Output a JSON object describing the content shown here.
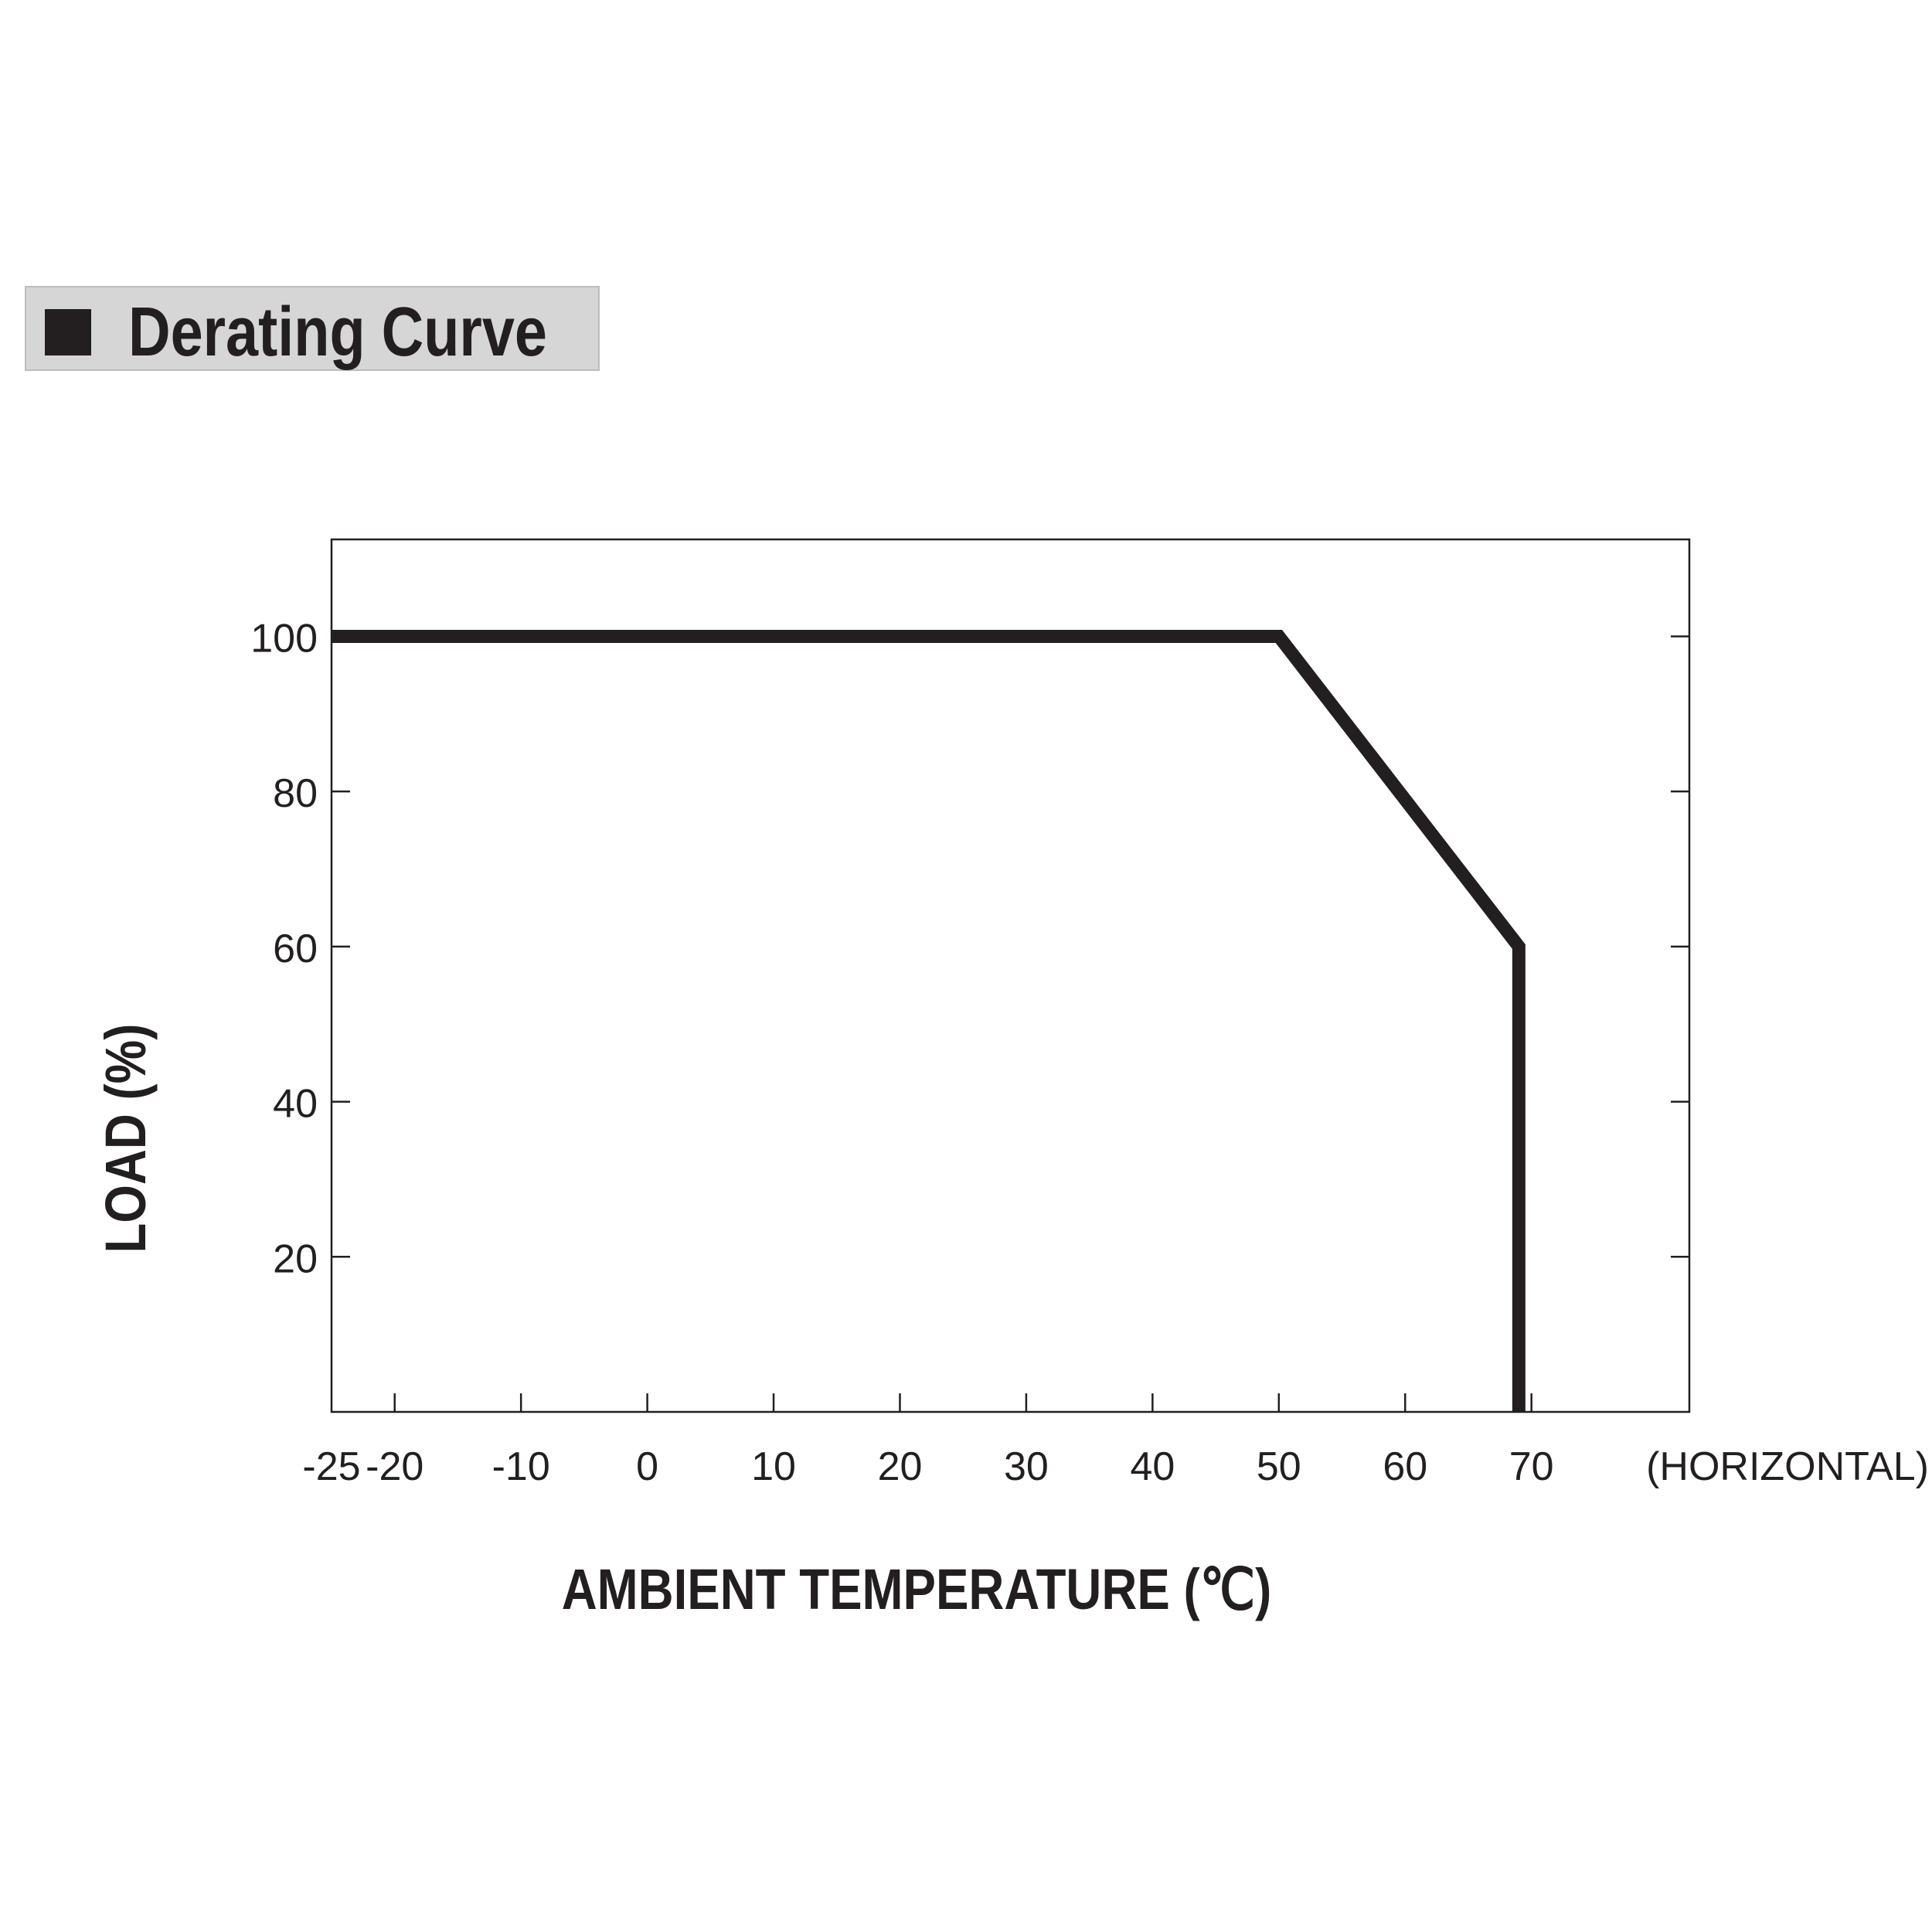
{
  "header": {
    "title": "Derating Curve"
  },
  "chart_data": {
    "type": "line",
    "title": "Derating Curve",
    "xlabel": "AMBIENT TEMPERATURE (℃)",
    "ylabel": "LOAD (%)",
    "x_annotation": "(HORIZONTAL)",
    "xticks": [
      -25,
      -20,
      -10,
      0,
      10,
      20,
      30,
      40,
      50,
      60,
      70
    ],
    "yticks": [
      20,
      40,
      60,
      80,
      100
    ],
    "xlim": [
      -25,
      82.5
    ],
    "ylim": [
      0,
      112.5
    ],
    "grid": false,
    "series": [
      {
        "x": [
          -25,
          50,
          69,
          69,
          69
        ],
        "y": [
          100,
          100,
          60,
          60,
          0
        ]
      }
    ],
    "colors": {
      "line": "#231f20",
      "axis": "#231f20"
    }
  }
}
